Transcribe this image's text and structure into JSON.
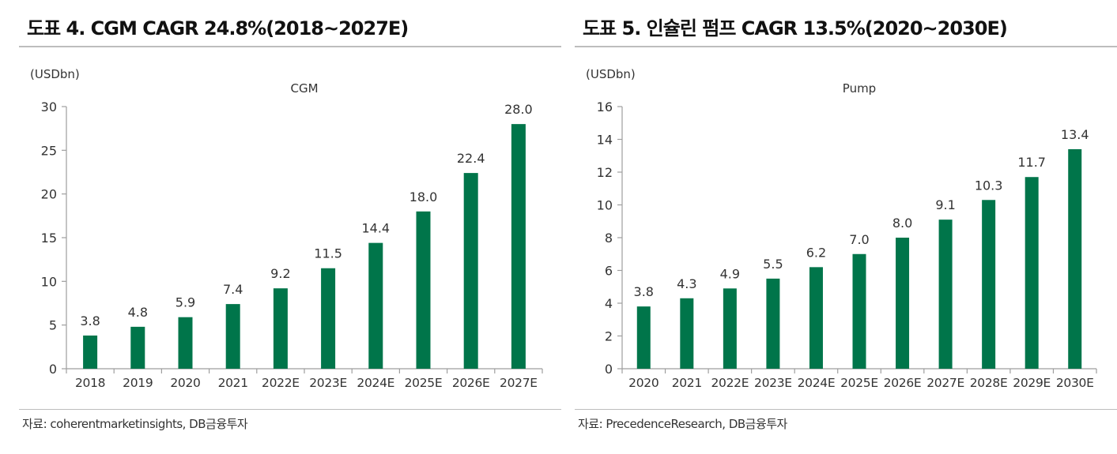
{
  "left": {
    "fig_title": "도표 4. CGM CAGR 24.8%(2018~2027E)",
    "source": "자료: coherentmarketinsights, DB금융투자",
    "unit": "(USDbn)"
  },
  "right": {
    "fig_title": "도표 5. 인슐린 펌프 CAGR 13.5%(2020~2030E)",
    "source": "자료: PrecedenceResearch, DB금융투자",
    "unit": "(USDbn)"
  },
  "colors": {
    "bar": "#00754a",
    "axis": "#9e9e9e"
  },
  "chart_data": [
    {
      "type": "bar",
      "title": "CGM",
      "ylabel": "(USDbn)",
      "categories": [
        "2018",
        "2019",
        "2020",
        "2021",
        "2022E",
        "2023E",
        "2024E",
        "2025E",
        "2026E",
        "2027E"
      ],
      "values": [
        3.8,
        4.8,
        5.9,
        7.4,
        9.2,
        11.5,
        14.4,
        18.0,
        22.4,
        28.0
      ],
      "value_labels": [
        "3.8",
        "4.8",
        "5.9",
        "7.4",
        "9.2",
        "11.5",
        "14.4",
        "18.0",
        "22.4",
        "28.0"
      ],
      "ylim": [
        0,
        30
      ],
      "yticks": [
        0,
        5,
        10,
        15,
        20,
        25,
        30
      ],
      "grid": false
    },
    {
      "type": "bar",
      "title": "Pump",
      "ylabel": "(USDbn)",
      "categories": [
        "2020",
        "2021",
        "2022E",
        "2023E",
        "2024E",
        "2025E",
        "2026E",
        "2027E",
        "2028E",
        "2029E",
        "2030E"
      ],
      "values": [
        3.8,
        4.3,
        4.9,
        5.5,
        6.2,
        7.0,
        8.0,
        9.1,
        10.3,
        11.7,
        13.4
      ],
      "value_labels": [
        "3.8",
        "4.3",
        "4.9",
        "5.5",
        "6.2",
        "7.0",
        "8.0",
        "9.1",
        "10.3",
        "11.7",
        "13.4"
      ],
      "ylim": [
        0,
        16
      ],
      "yticks": [
        0,
        2,
        4,
        6,
        8,
        10,
        12,
        14,
        16
      ],
      "grid": false
    }
  ]
}
